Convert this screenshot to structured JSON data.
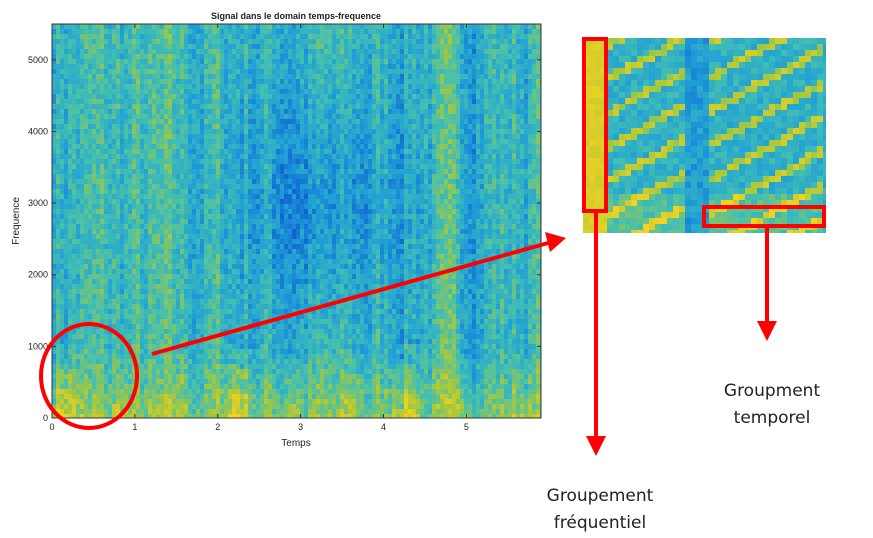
{
  "chart_data": {
    "type": "heatmap",
    "title": "Signal dans le domain temps-frequence",
    "xlabel": "Temps",
    "ylabel": "Frequence",
    "xlim": [
      0,
      5.9
    ],
    "ylim": [
      0,
      5500
    ],
    "x_ticks": [
      "0",
      "1",
      "2",
      "3",
      "4",
      "5"
    ],
    "y_ticks": [
      "0",
      "1000",
      "2000",
      "3000",
      "4000",
      "5000"
    ],
    "colormap": [
      "#0f5fd0",
      "#1f9fd8",
      "#44c0b0",
      "#a8c83a",
      "#f7d21e"
    ]
  },
  "annotations": {
    "freq_label": [
      "Groupement",
      "fréquentiel"
    ],
    "time_label": [
      "Groupment",
      "temporel"
    ],
    "highlight_color": "#ff0000"
  }
}
